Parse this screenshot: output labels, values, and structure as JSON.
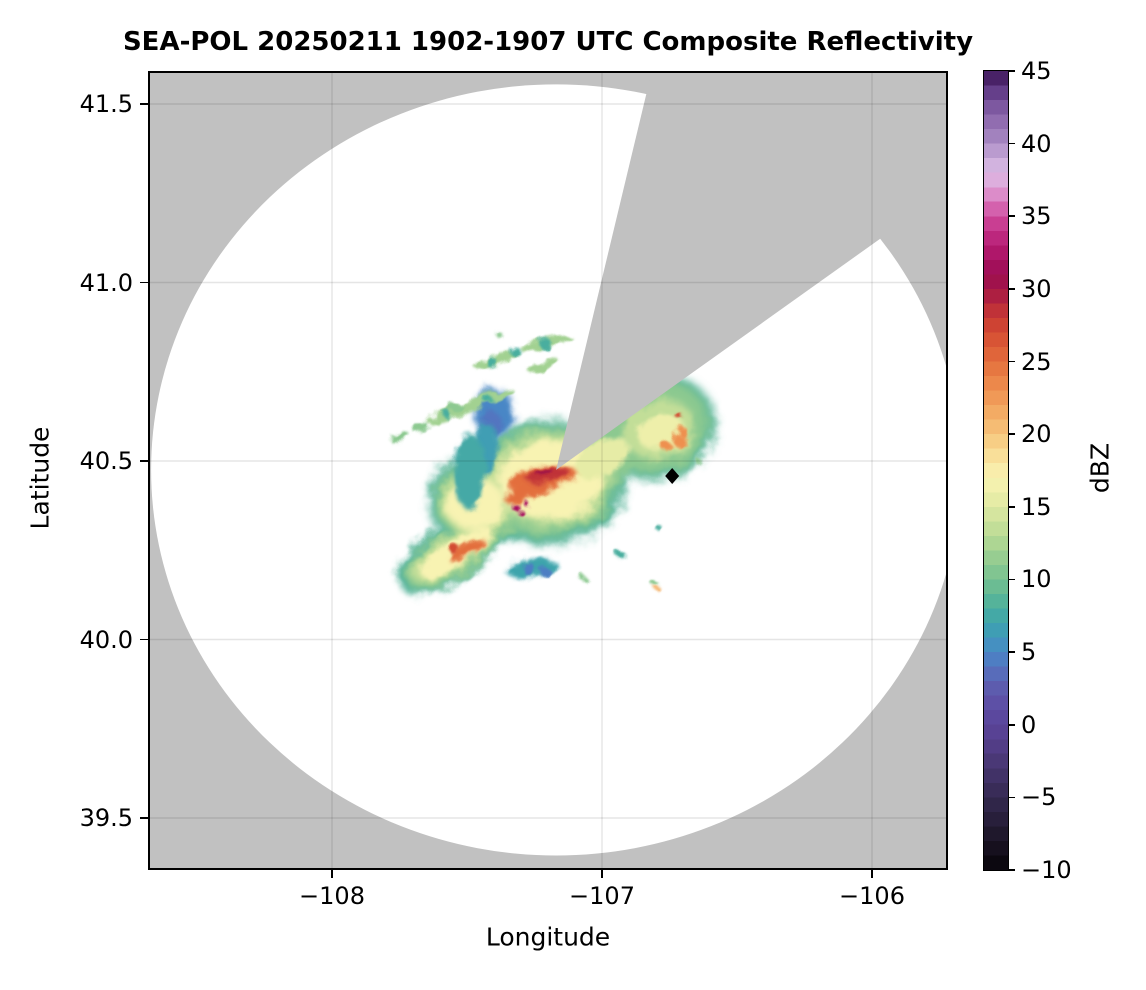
{
  "labels": {
    "title": "SEA-POL 20250211 1902-1907 UTC Composite Reflectivity",
    "xlabel": "Longitude",
    "ylabel": "Latitude",
    "colorbar_label": "dBZ",
    "x_tick_labels": [
      "−108",
      "−107",
      "−106"
    ],
    "y_tick_labels": [
      "41.5",
      "41.0",
      "40.5",
      "40.0",
      "39.5"
    ],
    "colorbar_tick_labels": [
      "45",
      "40",
      "35",
      "30",
      "25",
      "20",
      "15",
      "10",
      "5",
      "0",
      "−5",
      "−10"
    ]
  },
  "style": {
    "outside_gray": "#c1c1c1",
    "coverage_white": "#ffffff",
    "grid_color": "rgba(0,0,0,0.10)",
    "frame_color": "#000000",
    "marker_color": "#000000"
  },
  "chart_data": {
    "type": "heatmap",
    "title": "SEA-POL 20250211 1902-1907 UTC Composite Reflectivity",
    "xlabel": "Longitude",
    "ylabel": "Latitude",
    "xlim": [
      -108.68,
      -105.72
    ],
    "ylim": [
      39.36,
      41.6
    ],
    "x_ticks": [
      -108,
      -107,
      -106
    ],
    "y_ticks": [
      41.5,
      41.0,
      40.5,
      40.0,
      39.5
    ],
    "grid": true,
    "colorbar_label": "dBZ",
    "colorbar_range": [
      -10,
      45
    ],
    "colorbar_ticks": [
      45,
      40,
      35,
      30,
      25,
      20,
      15,
      10,
      5,
      0,
      -5,
      -10
    ],
    "colormap_stops": [
      [
        -10,
        "#070409"
      ],
      [
        -9,
        "#110b17"
      ],
      [
        -8,
        "#1a1425"
      ],
      [
        -7,
        "#231b33"
      ],
      [
        -6,
        "#2c2242"
      ],
      [
        -5,
        "#342950"
      ],
      [
        -4,
        "#3d2f60"
      ],
      [
        -3,
        "#45356e"
      ],
      [
        -2,
        "#4e3a7e"
      ],
      [
        -1,
        "#553f8d"
      ],
      [
        0,
        "#5a449a"
      ],
      [
        1,
        "#5c4ba2"
      ],
      [
        2,
        "#5e55a9"
      ],
      [
        3,
        "#5c63b3"
      ],
      [
        4,
        "#5374c0"
      ],
      [
        5,
        "#4987c6"
      ],
      [
        6,
        "#4098bc"
      ],
      [
        7,
        "#3ea4ac"
      ],
      [
        8,
        "#4aae9f"
      ],
      [
        9,
        "#5fb795"
      ],
      [
        10,
        "#76c091"
      ],
      [
        11,
        "#8cc990"
      ],
      [
        12,
        "#a2d191"
      ],
      [
        13,
        "#b8da95"
      ],
      [
        14,
        "#cce19b"
      ],
      [
        15,
        "#dee9a2"
      ],
      [
        16,
        "#eeefaa"
      ],
      [
        17,
        "#f8f3b2"
      ],
      [
        18,
        "#fae7a3"
      ],
      [
        19,
        "#f8d68e"
      ],
      [
        20,
        "#f6c57c"
      ],
      [
        21,
        "#f4b36b"
      ],
      [
        22,
        "#f1a25d"
      ],
      [
        23,
        "#ee9050"
      ],
      [
        24,
        "#e97f45"
      ],
      [
        25,
        "#e36e3d"
      ],
      [
        26,
        "#dc5c37"
      ],
      [
        27,
        "#d34b32"
      ],
      [
        28,
        "#c83a34"
      ],
      [
        29,
        "#b7293c"
      ],
      [
        30,
        "#a31545"
      ],
      [
        31,
        "#9c0e53"
      ],
      [
        32,
        "#a81161"
      ],
      [
        33,
        "#b51d73"
      ],
      [
        34,
        "#c23086"
      ],
      [
        35,
        "#cf4b9d"
      ],
      [
        36,
        "#d977bd"
      ],
      [
        37,
        "#dfa0d5"
      ],
      [
        38,
        "#dbbce4"
      ],
      [
        39,
        "#c9aad9"
      ],
      [
        40,
        "#aa8cc4"
      ],
      [
        41,
        "#9a77b7"
      ],
      [
        42,
        "#8862a9"
      ],
      [
        43,
        "#724d97"
      ],
      [
        44,
        "#58317d"
      ],
      [
        45,
        "#391251"
      ]
    ],
    "radar": {
      "lon": -107.17,
      "lat": 40.475,
      "range_lon_deg": 1.5,
      "range_lat_deg": 1.08
    },
    "blocked_sector_az_deg": [
      13.5,
      54.5
    ],
    "site_marker": {
      "lon": -106.74,
      "lat": 40.458,
      "shape": "diamond"
    },
    "echoes_dbz": [
      {
        "lon": -107.2,
        "lat": 40.44,
        "rx": 0.289,
        "ry": 0.174,
        "rot": 0,
        "dbz": 8.5
      },
      {
        "lon": -107.56,
        "lat": 40.24,
        "rx": 0.222,
        "ry": 0.078,
        "rot": -33,
        "dbz": 8.5
      },
      {
        "lon": -106.8,
        "lat": 40.595,
        "rx": 0.222,
        "ry": 0.146,
        "rot": -15,
        "dbz": 8.5
      },
      {
        "lon": -107.45,
        "lat": 40.39,
        "rx": 0.193,
        "ry": 0.129,
        "rot": 0,
        "dbz": 8.5
      },
      {
        "lon": -107.2,
        "lat": 40.444,
        "rx": 0.259,
        "ry": 0.154,
        "rot": 0,
        "dbz": 11
      },
      {
        "lon": -107.45,
        "lat": 40.39,
        "rx": 0.17,
        "ry": 0.112,
        "rot": 0,
        "dbz": 11
      },
      {
        "lon": -107.55,
        "lat": 40.24,
        "rx": 0.2,
        "ry": 0.067,
        "rot": -33,
        "dbz": 11
      },
      {
        "lon": -106.8,
        "lat": 40.595,
        "rx": 0.2,
        "ry": 0.129,
        "rot": -15,
        "dbz": 11
      },
      {
        "lon": -107.0,
        "lat": 40.52,
        "rx": 0.178,
        "ry": 0.084,
        "rot": -28,
        "dbz": 11
      },
      {
        "lon": -107.19,
        "lat": 40.45,
        "rx": 0.222,
        "ry": 0.129,
        "rot": 0,
        "dbz": 13.5
      },
      {
        "lon": -107.46,
        "lat": 40.39,
        "rx": 0.141,
        "ry": 0.092,
        "rot": 0,
        "dbz": 13.5
      },
      {
        "lon": -107.55,
        "lat": 40.245,
        "rx": 0.178,
        "ry": 0.053,
        "rot": -33,
        "dbz": 13.5
      },
      {
        "lon": -106.79,
        "lat": 40.59,
        "rx": 0.133,
        "ry": 0.084,
        "rot": -15,
        "dbz": 13.5
      },
      {
        "lon": -107.19,
        "lat": 40.447,
        "rx": 0.193,
        "ry": 0.112,
        "rot": 0,
        "dbz": 17
      },
      {
        "lon": -107.47,
        "lat": 40.38,
        "rx": 0.111,
        "ry": 0.073,
        "rot": 0,
        "dbz": 17
      },
      {
        "lon": -107.54,
        "lat": 40.245,
        "rx": 0.156,
        "ry": 0.039,
        "rot": -33,
        "dbz": 17
      },
      {
        "lon": -106.78,
        "lat": 40.58,
        "rx": 0.089,
        "ry": 0.05,
        "rot": -15,
        "dbz": 16
      },
      {
        "lon": -107.0,
        "lat": 40.51,
        "rx": 0.111,
        "ry": 0.045,
        "rot": -28,
        "dbz": 15.5
      },
      {
        "lon": -107.22,
        "lat": 40.45,
        "rx": 0.126,
        "ry": 0.034,
        "rot": -12,
        "dbz": 25
      },
      {
        "lon": -107.28,
        "lat": 40.42,
        "rx": 0.089,
        "ry": 0.025,
        "rot": -30,
        "dbz": 25
      },
      {
        "lon": -107.5,
        "lat": 40.25,
        "rx": 0.074,
        "ry": 0.02,
        "rot": -27,
        "dbz": 25
      },
      {
        "lon": -106.72,
        "lat": 40.56,
        "rx": 0.022,
        "ry": 0.017,
        "rot": 0,
        "dbz": 23
      },
      {
        "lon": -106.7,
        "lat": 40.58,
        "rx": 0.019,
        "ry": 0.014,
        "rot": 0,
        "dbz": 23
      },
      {
        "lon": -106.76,
        "lat": 40.54,
        "rx": 0.019,
        "ry": 0.014,
        "rot": 0,
        "dbz": 23
      },
      {
        "lon": -107.2,
        "lat": 40.46,
        "rx": 0.081,
        "ry": 0.02,
        "rot": -10,
        "dbz": 28.5
      },
      {
        "lon": -107.55,
        "lat": 40.256,
        "rx": 0.019,
        "ry": 0.014,
        "rot": 0,
        "dbz": 27
      },
      {
        "lon": -106.72,
        "lat": 40.63,
        "rx": 0.011,
        "ry": 0.008,
        "rot": 0,
        "dbz": 27
      },
      {
        "lon": -107.32,
        "lat": 40.37,
        "rx": 0.013,
        "ry": 0.01,
        "rot": 0,
        "dbz": 32
      },
      {
        "lon": -107.3,
        "lat": 40.355,
        "rx": 0.011,
        "ry": 0.008,
        "rot": 0,
        "dbz": 32
      },
      {
        "lon": -107.28,
        "lat": 40.38,
        "rx": 0.009,
        "ry": 0.007,
        "rot": 0,
        "dbz": 32
      },
      {
        "lon": -107.21,
        "lat": 40.466,
        "rx": 0.03,
        "ry": 0.008,
        "rot": -10,
        "dbz": 30
      },
      {
        "lon": -107.4,
        "lat": 40.637,
        "rx": 0.074,
        "ry": 0.067,
        "rot": 0,
        "dbz": 5
      },
      {
        "lon": -107.41,
        "lat": 40.606,
        "rx": 0.037,
        "ry": 0.034,
        "rot": 0,
        "dbz": 4
      },
      {
        "lon": -107.43,
        "lat": 40.536,
        "rx": 0.044,
        "ry": 0.073,
        "rot": 0,
        "dbz": 6.5
      },
      {
        "lon": -107.49,
        "lat": 40.47,
        "rx": 0.059,
        "ry": 0.106,
        "rot": 0,
        "dbz": 7.5
      },
      {
        "lon": -107.26,
        "lat": 40.2,
        "rx": 0.096,
        "ry": 0.025,
        "rot": -8,
        "dbz": 7
      },
      {
        "lon": -107.27,
        "lat": 40.197,
        "rx": 0.022,
        "ry": 0.017,
        "rot": 0,
        "dbz": 4.5
      },
      {
        "lon": -107.21,
        "lat": 40.189,
        "rx": 0.019,
        "ry": 0.014,
        "rot": 0,
        "dbz": 4.5
      },
      {
        "lon": -107.49,
        "lat": 40.654,
        "rx": 0.17,
        "ry": 0.017,
        "rot": -22,
        "dbz": 12
      },
      {
        "lon": -107.57,
        "lat": 40.629,
        "rx": 0.015,
        "ry": 0.011,
        "rot": 0,
        "dbz": 8
      },
      {
        "lon": -107.42,
        "lat": 40.671,
        "rx": 0.015,
        "ry": 0.011,
        "rot": 0,
        "dbz": 8
      },
      {
        "lon": -107.39,
        "lat": 40.783,
        "rx": 0.089,
        "ry": 0.014,
        "rot": -17,
        "dbz": 12
      },
      {
        "lon": -107.21,
        "lat": 40.83,
        "rx": 0.096,
        "ry": 0.014,
        "rot": -15,
        "dbz": 12
      },
      {
        "lon": -107.41,
        "lat": 40.777,
        "rx": 0.019,
        "ry": 0.014,
        "rot": 0,
        "dbz": 8
      },
      {
        "lon": -107.32,
        "lat": 40.805,
        "rx": 0.019,
        "ry": 0.014,
        "rot": 0,
        "dbz": 8
      },
      {
        "lon": -107.21,
        "lat": 40.828,
        "rx": 0.022,
        "ry": 0.017,
        "rot": 0,
        "dbz": 8
      },
      {
        "lon": -107.75,
        "lat": 40.567,
        "rx": 0.037,
        "ry": 0.011,
        "rot": -20,
        "dbz": 11
      },
      {
        "lon": -107.67,
        "lat": 40.592,
        "rx": 0.03,
        "ry": 0.011,
        "rot": -20,
        "dbz": 11
      },
      {
        "lon": -107.54,
        "lat": 40.648,
        "rx": 0.026,
        "ry": 0.011,
        "rot": -20,
        "dbz": 11
      },
      {
        "lon": -107.38,
        "lat": 40.853,
        "rx": 0.011,
        "ry": 0.008,
        "rot": 0,
        "dbz": 11
      },
      {
        "lon": -107.24,
        "lat": 40.763,
        "rx": 0.037,
        "ry": 0.014,
        "rot": -20,
        "dbz": 12
      },
      {
        "lon": -107.19,
        "lat": 40.775,
        "rx": 0.03,
        "ry": 0.011,
        "rot": -20,
        "dbz": 12
      },
      {
        "lon": -106.93,
        "lat": 40.237,
        "rx": 0.015,
        "ry": 0.011,
        "rot": 0,
        "dbz": 8
      },
      {
        "lon": -106.8,
        "lat": 40.153,
        "rx": 0.011,
        "ry": 0.008,
        "rot": 0,
        "dbz": 11
      },
      {
        "lon": -106.64,
        "lat": 40.497,
        "rx": 0.011,
        "ry": 0.008,
        "rot": 0,
        "dbz": 11
      },
      {
        "lon": -106.79,
        "lat": 40.313,
        "rx": 0.011,
        "ry": 0.008,
        "rot": 0,
        "dbz": 8
      },
      {
        "lon": -106.79,
        "lat": 40.139,
        "rx": 0.009,
        "ry": 0.007,
        "rot": 0,
        "dbz": 21
      },
      {
        "lon": -107.07,
        "lat": 40.172,
        "rx": 0.011,
        "ry": 0.008,
        "rot": 0,
        "dbz": 11
      }
    ]
  }
}
